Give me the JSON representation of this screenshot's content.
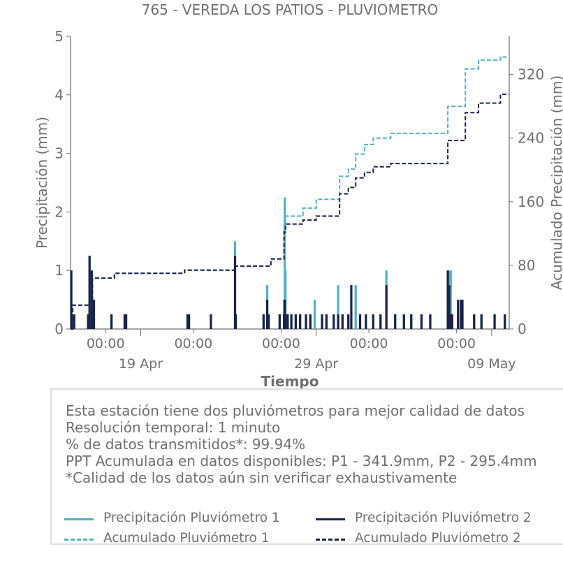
{
  "chart_data": {
    "type": "line",
    "title": "765 - VEREDA LOS PATIOS - PLUVIOMETRO",
    "xlabel": "Tiempo",
    "ylabel": "Precipitación (mm)",
    "y2label": "Acumulado Precipitación (mm)",
    "ylim": [
      0,
      5
    ],
    "y2lim": [
      0,
      368
    ],
    "xlim": [
      "2025-04-15",
      "2025-05-10"
    ],
    "x_ticks": [
      {
        "x": "2025-04-17",
        "label": "00:00"
      },
      {
        "x": "2025-04-22",
        "label": "00:00"
      },
      {
        "x": "2025-04-27",
        "label": "00:00"
      },
      {
        "x": "2025-05-02",
        "label": "00:00"
      },
      {
        "x": "2025-05-07",
        "label": "00:00"
      }
    ],
    "x_date_ticks": [
      {
        "x": "2025-04-19",
        "label": "19 Apr"
      },
      {
        "x": "2025-04-29",
        "label": "29 Apr"
      },
      {
        "x": "2025-05-09",
        "label": "09 May"
      }
    ],
    "y_ticks": [
      0,
      1,
      2,
      3,
      4,
      5
    ],
    "y2_ticks": [
      0,
      80,
      160,
      240,
      320
    ],
    "colors": {
      "p1": "#4fb3c2",
      "p2": "#1b2347"
    },
    "series": [
      {
        "name": "Precipitación Pluviómetro 1",
        "style": "bars",
        "color": "#4fb3c2",
        "points": [
          [
            "2025-04-15 01:00",
            1.0
          ],
          [
            "2025-04-15 03:00",
            0.25
          ],
          [
            "2025-04-15 05:00",
            0.25
          ],
          [
            "2025-04-16 00:00",
            0.25
          ],
          [
            "2025-04-16 02:00",
            1.25
          ],
          [
            "2025-04-16 05:00",
            1.0
          ],
          [
            "2025-04-16 08:00",
            0.5
          ],
          [
            "2025-04-17 08:00",
            0.25
          ],
          [
            "2025-04-18 02:00",
            0.25
          ],
          [
            "2025-04-18 04:00",
            0.25
          ],
          [
            "2025-04-21 16:00",
            0.25
          ],
          [
            "2025-04-21 18:00",
            0.25
          ],
          [
            "2025-04-23 00:00",
            0.25
          ],
          [
            "2025-04-24 09:00",
            1.5
          ],
          [
            "2025-04-24 10:00",
            0.25
          ],
          [
            "2025-04-26 00:00",
            0.25
          ],
          [
            "2025-04-26 05:00",
            0.75
          ],
          [
            "2025-04-26 07:00",
            0.25
          ],
          [
            "2025-04-26 22:00",
            0.25
          ],
          [
            "2025-04-27 04:00",
            0.5
          ],
          [
            "2025-04-27 05:00",
            2.25
          ],
          [
            "2025-04-27 06:00",
            1.0
          ],
          [
            "2025-04-27 09:00",
            0.25
          ],
          [
            "2025-04-27 14:00",
            0.25
          ],
          [
            "2025-04-27 20:00",
            0.25
          ],
          [
            "2025-04-28 02:00",
            0.25
          ],
          [
            "2025-04-28 10:00",
            0.25
          ],
          [
            "2025-04-28 16:00",
            0.25
          ],
          [
            "2025-04-28 22:00",
            0.5
          ],
          [
            "2025-04-29 08:00",
            0.25
          ],
          [
            "2025-04-29 14:00",
            0.25
          ],
          [
            "2025-04-30 00:00",
            0.25
          ],
          [
            "2025-04-30 06:00",
            0.75
          ],
          [
            "2025-04-30 12:00",
            0.25
          ],
          [
            "2025-04-30 20:00",
            0.25
          ],
          [
            "2025-05-01 06:00",
            0.75
          ],
          [
            "2025-05-01 12:00",
            0.25
          ],
          [
            "2025-05-01 20:00",
            0.25
          ],
          [
            "2025-05-02 06:00",
            0.25
          ],
          [
            "2025-05-02 16:00",
            0.25
          ],
          [
            "2025-05-03 00:00",
            1.0
          ],
          [
            "2025-05-03 12:00",
            0.25
          ],
          [
            "2025-05-04 00:00",
            0.25
          ],
          [
            "2025-05-04 10:00",
            0.25
          ],
          [
            "2025-05-05 00:00",
            0.25
          ],
          [
            "2025-05-05 12:00",
            0.25
          ],
          [
            "2025-05-06 12:00",
            0.5
          ],
          [
            "2025-05-06 14:00",
            1.0
          ],
          [
            "2025-05-06 16:00",
            1.0
          ],
          [
            "2025-05-06 18:00",
            0.25
          ],
          [
            "2025-05-07 02:00",
            0.25
          ],
          [
            "2025-05-07 06:00",
            0.5
          ],
          [
            "2025-05-07 08:00",
            0.25
          ],
          [
            "2025-05-08 00:00",
            0.25
          ],
          [
            "2025-05-08 10:00",
            0.25
          ],
          [
            "2025-05-09 04:00",
            0.25
          ],
          [
            "2025-05-09 18:00",
            0.25
          ]
        ]
      },
      {
        "name": "Precipitación Pluviómetro 2",
        "style": "bars",
        "color": "#1b2347",
        "points": [
          [
            "2025-04-15 01:00",
            1.0
          ],
          [
            "2025-04-15 03:00",
            0.25
          ],
          [
            "2025-04-15 05:00",
            0.25
          ],
          [
            "2025-04-16 00:00",
            0.25
          ],
          [
            "2025-04-16 02:00",
            1.25
          ],
          [
            "2025-04-16 05:00",
            1.0
          ],
          [
            "2025-04-16 08:00",
            0.5
          ],
          [
            "2025-04-17 08:00",
            0.25
          ],
          [
            "2025-04-18 02:00",
            0.25
          ],
          [
            "2025-04-18 04:00",
            0.25
          ],
          [
            "2025-04-21 16:00",
            0.25
          ],
          [
            "2025-04-21 18:00",
            0.25
          ],
          [
            "2025-04-23 00:00",
            0.25
          ],
          [
            "2025-04-24 09:00",
            1.25
          ],
          [
            "2025-04-24 10:00",
            0.25
          ],
          [
            "2025-04-26 00:00",
            0.25
          ],
          [
            "2025-04-26 05:00",
            0.5
          ],
          [
            "2025-04-26 07:00",
            0.25
          ],
          [
            "2025-04-26 22:00",
            0.25
          ],
          [
            "2025-04-27 04:00",
            0.25
          ],
          [
            "2025-04-27 05:00",
            0.5
          ],
          [
            "2025-04-27 06:00",
            0.25
          ],
          [
            "2025-04-27 09:00",
            0.25
          ],
          [
            "2025-04-27 14:00",
            0.25
          ],
          [
            "2025-04-27 20:00",
            0.25
          ],
          [
            "2025-04-28 02:00",
            0.25
          ],
          [
            "2025-04-28 10:00",
            0.25
          ],
          [
            "2025-04-28 16:00",
            0.25
          ],
          [
            "2025-04-29 08:00",
            0.25
          ],
          [
            "2025-04-29 14:00",
            0.25
          ],
          [
            "2025-04-30 00:00",
            0.25
          ],
          [
            "2025-04-30 06:00",
            0.25
          ],
          [
            "2025-04-30 12:00",
            0.25
          ],
          [
            "2025-04-30 20:00",
            0.25
          ],
          [
            "2025-05-01 00:00",
            0.75
          ],
          [
            "2025-05-01 12:00",
            0.25
          ],
          [
            "2025-05-01 20:00",
            0.25
          ],
          [
            "2025-05-02 06:00",
            0.25
          ],
          [
            "2025-05-02 16:00",
            0.25
          ],
          [
            "2025-05-03 00:00",
            0.75
          ],
          [
            "2025-05-03 12:00",
            0.25
          ],
          [
            "2025-05-04 00:00",
            0.25
          ],
          [
            "2025-05-04 10:00",
            0.25
          ],
          [
            "2025-05-05 00:00",
            0.25
          ],
          [
            "2025-05-05 12:00",
            0.25
          ],
          [
            "2025-05-06 12:00",
            1.0
          ],
          [
            "2025-05-06 14:00",
            0.75
          ],
          [
            "2025-05-06 16:00",
            0.25
          ],
          [
            "2025-05-06 18:00",
            0.25
          ],
          [
            "2025-05-07 02:00",
            0.5
          ],
          [
            "2025-05-07 06:00",
            0.5
          ],
          [
            "2025-05-07 08:00",
            0.5
          ],
          [
            "2025-05-08 00:00",
            0.25
          ],
          [
            "2025-05-08 10:00",
            0.25
          ],
          [
            "2025-05-09 04:00",
            0.25
          ],
          [
            "2025-05-09 18:00",
            0.25
          ]
        ]
      },
      {
        "name": "Acumulado Pluviómetro 1",
        "style": "dashed-step",
        "axis": "right",
        "color": "#4fb3c2",
        "points": [
          [
            "2025-04-15 00:00",
            0
          ],
          [
            "2025-04-15 03:00",
            30
          ],
          [
            "2025-04-16 06:00",
            64
          ],
          [
            "2025-04-17 12:00",
            70
          ],
          [
            "2025-04-21 12:00",
            74
          ],
          [
            "2025-04-24 09:00",
            79
          ],
          [
            "2025-04-26 10:00",
            88
          ],
          [
            "2025-04-27 04:00",
            127
          ],
          [
            "2025-04-27 06:00",
            142
          ],
          [
            "2025-04-28 06:00",
            152
          ],
          [
            "2025-04-29 00:00",
            163
          ],
          [
            "2025-04-30 08:00",
            192
          ],
          [
            "2025-04-30 20:00",
            201
          ],
          [
            "2025-05-01 06:00",
            220
          ],
          [
            "2025-05-01 18:00",
            232
          ],
          [
            "2025-05-02 06:00",
            240
          ],
          [
            "2025-05-03 06:00",
            246
          ],
          [
            "2025-05-06 12:00",
            280
          ],
          [
            "2025-05-07 12:00",
            327
          ],
          [
            "2025-05-08 06:00",
            338
          ],
          [
            "2025-05-09 12:00",
            342
          ],
          [
            "2025-05-10 00:00",
            342
          ]
        ]
      },
      {
        "name": "Acumulado Pluviómetro 2",
        "style": "dashed-step",
        "axis": "right",
        "color": "#1b2347",
        "points": [
          [
            "2025-04-15 00:00",
            0
          ],
          [
            "2025-04-15 03:00",
            30
          ],
          [
            "2025-04-16 06:00",
            64
          ],
          [
            "2025-04-17 12:00",
            70
          ],
          [
            "2025-04-21 12:00",
            74
          ],
          [
            "2025-04-24 09:00",
            79
          ],
          [
            "2025-04-26 10:00",
            88
          ],
          [
            "2025-04-27 04:00",
            122
          ],
          [
            "2025-04-27 06:00",
            132
          ],
          [
            "2025-04-28 06:00",
            137
          ],
          [
            "2025-04-29 00:00",
            142
          ],
          [
            "2025-04-30 08:00",
            170
          ],
          [
            "2025-04-30 20:00",
            178
          ],
          [
            "2025-05-01 06:00",
            190
          ],
          [
            "2025-05-01 18:00",
            197
          ],
          [
            "2025-05-02 06:00",
            204
          ],
          [
            "2025-05-03 06:00",
            208
          ],
          [
            "2025-05-06 12:00",
            237
          ],
          [
            "2025-05-07 12:00",
            272
          ],
          [
            "2025-05-08 06:00",
            284
          ],
          [
            "2025-05-09 12:00",
            295
          ],
          [
            "2025-05-10 00:00",
            295
          ]
        ]
      }
    ]
  },
  "info": {
    "lines": [
      "Esta estación tiene dos pluviómetros para mejor calidad de datos",
      "Resolución temporal: 1 minuto",
      "% de datos transmitidos*: 99.94%",
      "PPT Acumulada en datos disponibles: P1 - 341.9mm, P2 - 295.4mm",
      "*Calidad de los datos aún sin verificar exhaustivamente"
    ]
  },
  "legend": {
    "items": [
      {
        "label": "Precipitación Pluviómetro 1",
        "color": "#4fb3c2",
        "dashed": false
      },
      {
        "label": "Precipitación Pluviómetro 2",
        "color": "#1b2347",
        "dashed": false
      },
      {
        "label": "Acumulado Pluviómetro 1",
        "color": "#4fb3c2",
        "dashed": true
      },
      {
        "label": "Acumulado Pluviómetro 2",
        "color": "#1b2347",
        "dashed": true
      }
    ]
  }
}
